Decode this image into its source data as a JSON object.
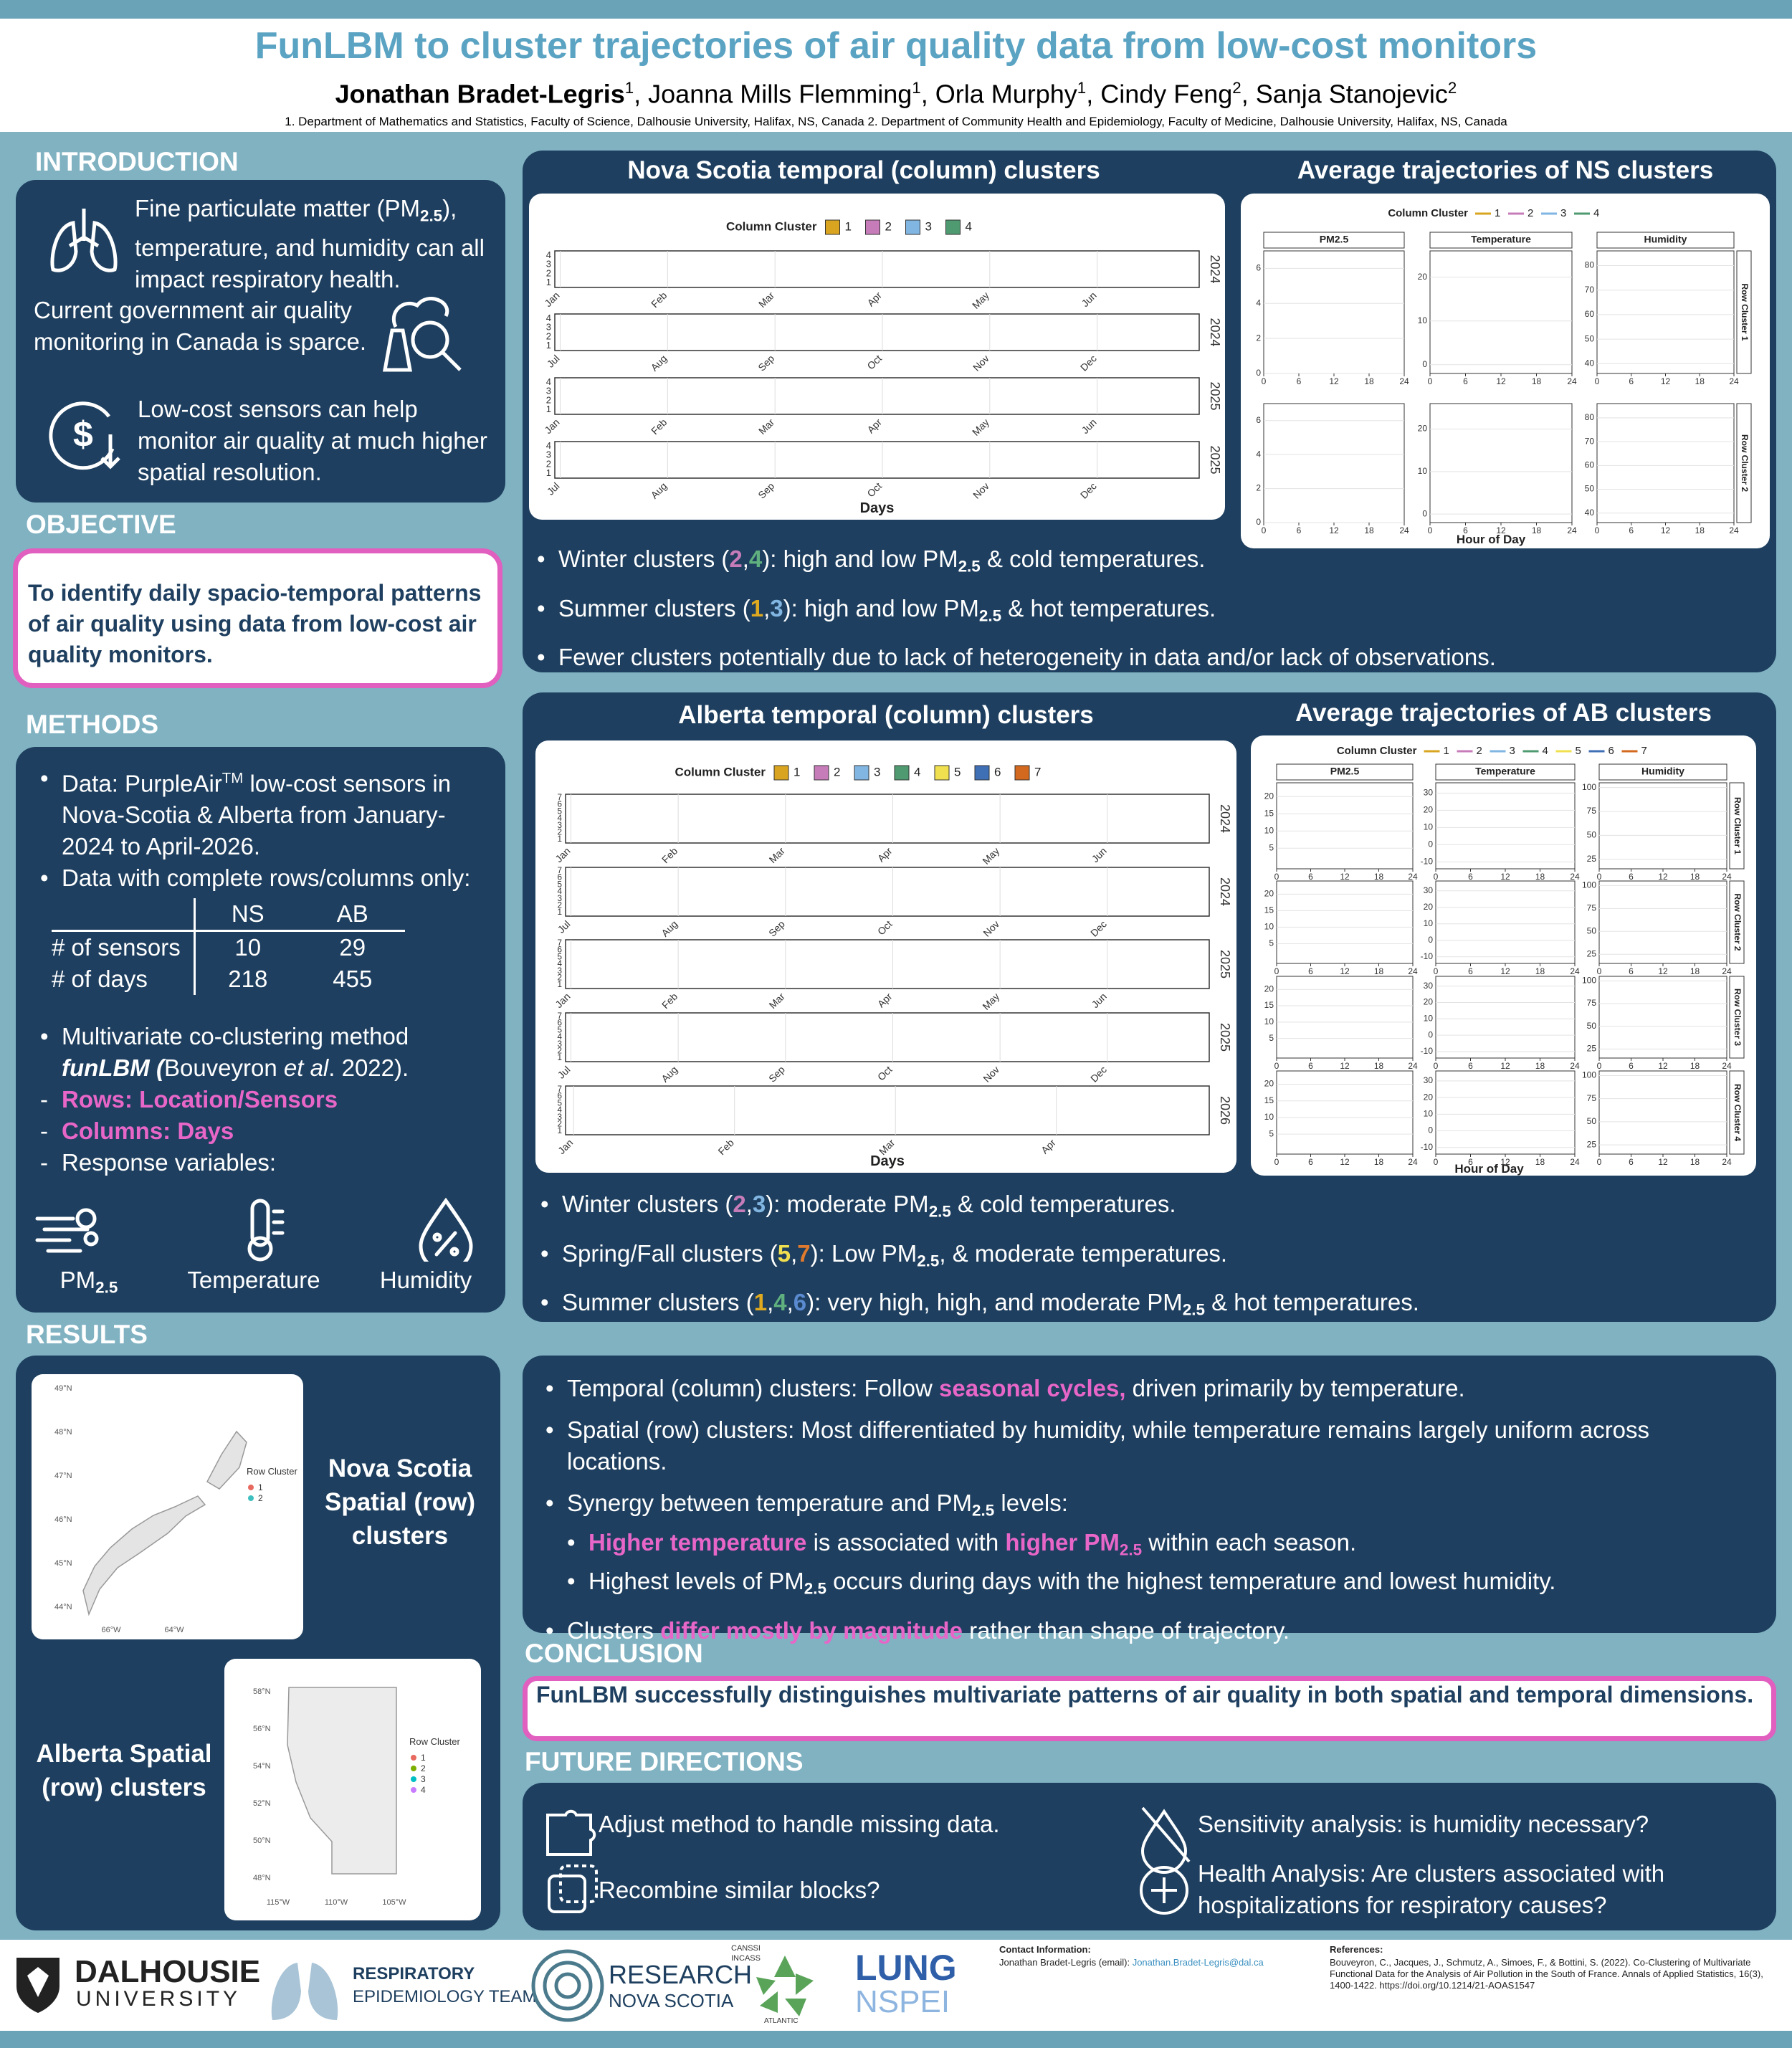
{
  "header": {
    "title": "FunLBM to cluster trajectories of air quality data from low-cost monitors",
    "authors": [
      {
        "t": "Jonathan Bradet-Legris",
        "s": "bold"
      },
      {
        "t": "1",
        "s": "sup"
      },
      ", Joanna Mills Flemming",
      {
        "t": "1",
        "s": "sup"
      },
      ", Orla Murphy",
      {
        "t": "1",
        "s": "sup"
      },
      ", Cindy Feng",
      {
        "t": "2",
        "s": "sup"
      },
      ", Sanja Stanojevic",
      {
        "t": "2",
        "s": "sup"
      }
    ],
    "affiliations": "1. Department of Mathematics and Statistics, Faculty of Science, Dalhousie University, Halifax, NS, Canada 2. Department of Community Health and Epidemiology, Faculty of Medicine, Dalhousie University, Halifax, NS, Canada"
  },
  "introduction": {
    "heading": "INTRODUCTION",
    "items": [
      [
        "Fine particulate matter (PM",
        {
          "t": "2.5",
          "s": "sub"
        },
        "), temperature, and humidity can all impact respiratory health."
      ],
      [
        "Current government air quality monitoring in Canada is sparce."
      ],
      [
        "Low-cost sensors can help monitor air quality at much higher spatial resolution."
      ]
    ]
  },
  "objective": {
    "heading": "OBJECTIVE",
    "text": "To identify daily spacio-temporal patterns of air quality using data from low-cost air quality monitors."
  },
  "methods": {
    "heading": "METHODS",
    "bullets": [
      [
        "Data: PurpleAir",
        {
          "t": "TM",
          "s": "sup"
        },
        " low-cost sensors in Nova-Scotia & Alberta from January-2024 to April-2026."
      ],
      [
        "Data with complete rows/columns only:"
      ]
    ],
    "table": {
      "columns": [
        "NS",
        "AB"
      ],
      "rows": [
        {
          "label": "# of sensors",
          "values": [
            10,
            29
          ]
        },
        {
          "label": "# of days",
          "values": [
            218,
            455
          ]
        }
      ]
    },
    "bullet3": [
      "Multivariate co-clustering method ",
      {
        "t": "funLBM (",
        "s": "bold it"
      },
      "Bouveyron ",
      {
        "t": "et al",
        "s": "it"
      },
      ". 2022)."
    ],
    "subs": [
      [
        {
          "t": "Rows: Location/Sensors",
          "s": "pink"
        }
      ],
      [
        {
          "t": "Columns: Days",
          "s": "pink"
        }
      ],
      [
        "Response variables:"
      ]
    ],
    "variables": [
      [
        "PM",
        {
          "t": "2.5",
          "s": "sub"
        }
      ],
      [
        "Temperature"
      ],
      [
        "Humidity"
      ]
    ]
  },
  "results": {
    "heading": "RESULTS",
    "ns_map": {
      "title": "Nova Scotia Spatial (row) clusters",
      "legend_title": "Row Cluster",
      "legend": [
        "1",
        "2"
      ],
      "colors": [
        "#e8695f",
        "#3fbfbf"
      ],
      "lat": [
        "49°N",
        "48°N",
        "47°N",
        "46°N",
        "45°N",
        "44°N"
      ],
      "lon": [
        "66°W",
        "64°W"
      ]
    },
    "ab_map": {
      "title": "Alberta Spatial (row) clusters",
      "legend_title": "Row Cluster",
      "legend": [
        "1",
        "2",
        "3",
        "4"
      ],
      "colors": [
        "#e8695f",
        "#7cae00",
        "#00bfc4",
        "#c77cff"
      ],
      "lat": [
        "58°N",
        "56°N",
        "54°N",
        "52°N",
        "50°N",
        "48°N"
      ],
      "lon": [
        "115°W",
        "110°W",
        "105°W"
      ]
    }
  },
  "ns": {
    "colors": [
      "#d9a520",
      "#c77cba",
      "#82b6e2",
      "#4f9a70"
    ],
    "temporal": {
      "title": "Nova Scotia temporal (column) clusters",
      "legend_title": "Column Cluster",
      "legend": [
        "1",
        "2",
        "3",
        "4"
      ],
      "levels": [
        "1",
        "2",
        "3",
        "4"
      ],
      "strips": [
        {
          "year": "2024",
          "months": [
            "Jan",
            "Feb",
            "Mar",
            "Apr",
            "May",
            "Jun"
          ]
        },
        {
          "year": "2024",
          "months": [
            "Jul",
            "Aug",
            "Sep",
            "Oct",
            "Nov",
            "Dec"
          ]
        },
        {
          "year": "2025",
          "months": [
            "Jan",
            "Feb",
            "Mar",
            "Apr",
            "May",
            "Jun"
          ]
        },
        {
          "year": "2025",
          "months": [
            "Jul",
            "Aug",
            "Sep",
            "Oct",
            "Nov",
            "Dec"
          ]
        }
      ],
      "xlabel": "Days"
    },
    "trajectories": {
      "title": "Average trajectories of NS clusters",
      "legend_title": "Column Cluster",
      "legend": [
        "1",
        "2",
        "3",
        "4"
      ],
      "facets": [
        "PM2.5",
        "Temperature",
        "Humidity"
      ],
      "rows": [
        "Row Cluster 1",
        "Row Cluster 2"
      ],
      "xlim": [
        0,
        24
      ],
      "xticks": [
        0,
        6,
        12,
        18,
        24
      ],
      "ylims": [
        [
          0,
          7
        ],
        [
          -2,
          26
        ],
        [
          36,
          86
        ]
      ],
      "yticks": [
        [
          0,
          2,
          4,
          6
        ],
        [
          0,
          10,
          20
        ],
        [
          40,
          50,
          60,
          70,
          80
        ]
      ],
      "xlabel": "Hour of Day"
    },
    "bullets": [
      [
        "Winter clusters (",
        {
          "t": "2",
          "s": "k2"
        },
        ",",
        {
          "t": "4",
          "s": "k4"
        },
        "): high and low PM",
        {
          "t": "2.5",
          "s": "sub"
        },
        " & cold temperatures."
      ],
      [
        "Summer clusters (",
        {
          "t": "1",
          "s": "k1"
        },
        ",",
        {
          "t": "3",
          "s": "k3"
        },
        "): high and low PM",
        {
          "t": "2.5",
          "s": "sub"
        },
        " & hot temperatures."
      ],
      [
        "Fewer clusters potentially due to lack of heterogeneity in data and/or lack of observations."
      ]
    ]
  },
  "ab": {
    "colors": [
      "#d9a520",
      "#c77cba",
      "#82b6e2",
      "#4f9a70",
      "#f0e050",
      "#3f6fb5",
      "#d2691e"
    ],
    "temporal": {
      "title": "Alberta temporal (column) clusters",
      "legend_title": "Column Cluster",
      "legend": [
        "1",
        "2",
        "3",
        "4",
        "5",
        "6",
        "7"
      ],
      "levels": [
        "1",
        "2",
        "3",
        "4",
        "5",
        "6",
        "7"
      ],
      "strips": [
        {
          "year": "2024",
          "months": [
            "Jan",
            "Feb",
            "Mar",
            "Apr",
            "May",
            "Jun"
          ]
        },
        {
          "year": "2024",
          "months": [
            "Jul",
            "Aug",
            "Sep",
            "Oct",
            "Nov",
            "Dec"
          ]
        },
        {
          "year": "2025",
          "months": [
            "Jan",
            "Feb",
            "Mar",
            "Apr",
            "May",
            "Jun"
          ]
        },
        {
          "year": "2025",
          "months": [
            "Jul",
            "Aug",
            "Sep",
            "Oct",
            "Nov",
            "Dec"
          ]
        },
        {
          "year": "2026",
          "months": [
            "Jan",
            "Feb",
            "Mar",
            "Apr"
          ]
        }
      ],
      "xlabel": "Days"
    },
    "trajectories": {
      "title": "Average trajectories of AB clusters",
      "legend_title": "Column Cluster",
      "legend": [
        "1",
        "2",
        "3",
        "4",
        "5",
        "6",
        "7"
      ],
      "facets": [
        "PM2.5",
        "Temperature",
        "Humidity"
      ],
      "rows": [
        "Row Cluster 1",
        "Row Cluster 2",
        "Row Cluster 3",
        "Row Cluster 4"
      ],
      "xlim": [
        0,
        24
      ],
      "xticks": [
        0,
        6,
        12,
        18,
        24
      ],
      "ylims": [
        [
          -1,
          24
        ],
        [
          -14,
          36
        ],
        [
          15,
          105
        ]
      ],
      "yticks": [
        [
          5,
          10,
          15,
          20
        ],
        [
          -10,
          0,
          10,
          20,
          30
        ],
        [
          25,
          50,
          75,
          100
        ]
      ],
      "xlabel": "Hour of Day"
    },
    "bullets": [
      [
        "Winter clusters (",
        {
          "t": "2",
          "s": "k2"
        },
        ",",
        {
          "t": "3",
          "s": "k3"
        },
        "): moderate PM",
        {
          "t": "2.5",
          "s": "sub"
        },
        " & cold temperatures."
      ],
      [
        "Spring/Fall clusters (",
        {
          "t": "5",
          "s": "k5"
        },
        ",",
        {
          "t": "7",
          "s": "k7"
        },
        "): Low PM",
        {
          "t": "2.5",
          "s": "sub"
        },
        ", & moderate temperatures."
      ],
      [
        "Summer clusters (",
        {
          "t": "1",
          "s": "k1"
        },
        ",",
        {
          "t": "4",
          "s": "k4"
        },
        ",",
        {
          "t": "6",
          "s": "k6"
        },
        "): very high, high, and moderate PM",
        {
          "t": "2.5",
          "s": "sub"
        },
        " & hot temperatures."
      ]
    ]
  },
  "findings": [
    {
      "text": [
        "Temporal (column) clusters: Follow ",
        {
          "t": "seasonal cycles,",
          "s": "pink"
        },
        " driven primarily by temperature."
      ]
    },
    {
      "text": [
        "Spatial (row) clusters: Most differentiated by humidity, while temperature remains largely uniform across locations."
      ]
    },
    {
      "text": [
        "Synergy between temperature and PM",
        {
          "t": "2.5",
          "s": "sub"
        },
        " levels:"
      ],
      "sub": [
        [
          {
            "t": "Higher temperature",
            "s": "pink"
          },
          " is associated with ",
          {
            "t": "higher PM",
            "s": "pink"
          },
          {
            "t": "2.5",
            "s": "pink sub"
          },
          " within each season."
        ],
        [
          "Highest levels of PM",
          {
            "t": "2.5",
            "s": "sub"
          },
          " occurs during days with the highest temperature and lowest humidity."
        ]
      ]
    },
    {
      "text": [
        "Clusters ",
        {
          "t": "differ mostly by magnitude",
          "s": "pink"
        },
        " rather than shape of trajectory."
      ]
    }
  ],
  "conclusion": {
    "heading": "CONCLUSION",
    "text": "FunLBM successfully distinguishes multivariate patterns of air quality in both spatial and temporal dimensions."
  },
  "future": {
    "heading": "FUTURE DIRECTIONS",
    "items": [
      "Adjust method to handle missing data.",
      "Recombine similar blocks?",
      "Sensitivity analysis: is humidity necessary?",
      "Health Analysis: Are clusters associated with hospitalizations for respiratory causes?"
    ]
  },
  "footer": {
    "logos": [
      [
        "DALHOUSIE",
        "UNIVERSITY"
      ],
      [
        "RESPIRATORY",
        "EPIDEMIOLOGY TEAM"
      ],
      [
        "RESEARCH",
        "NOVA SCOTIA"
      ],
      [
        "CANSSI",
        "INCASS",
        "ATLANTIC"
      ],
      [
        "LUNG",
        "NSPEI"
      ]
    ],
    "contact": {
      "heading": "Contact Information:",
      "text": "Jonathan Bradet-Legris (email): ",
      "email": "Jonathan.Bradet-Legris@dal.ca"
    },
    "references": {
      "heading": "References:",
      "text": "Bouveyron, C., Jacques, J., Schmutz, A., Simoes, F., & Bottini, S. (2022). Co-Clustering of Multivariate Functional Data for the Analysis of Air Pollution in the South of France. Annals of Applied Statistics, 16(3), 1400-1422. https://doi.org/10.1214/21-AOAS1547"
    }
  }
}
